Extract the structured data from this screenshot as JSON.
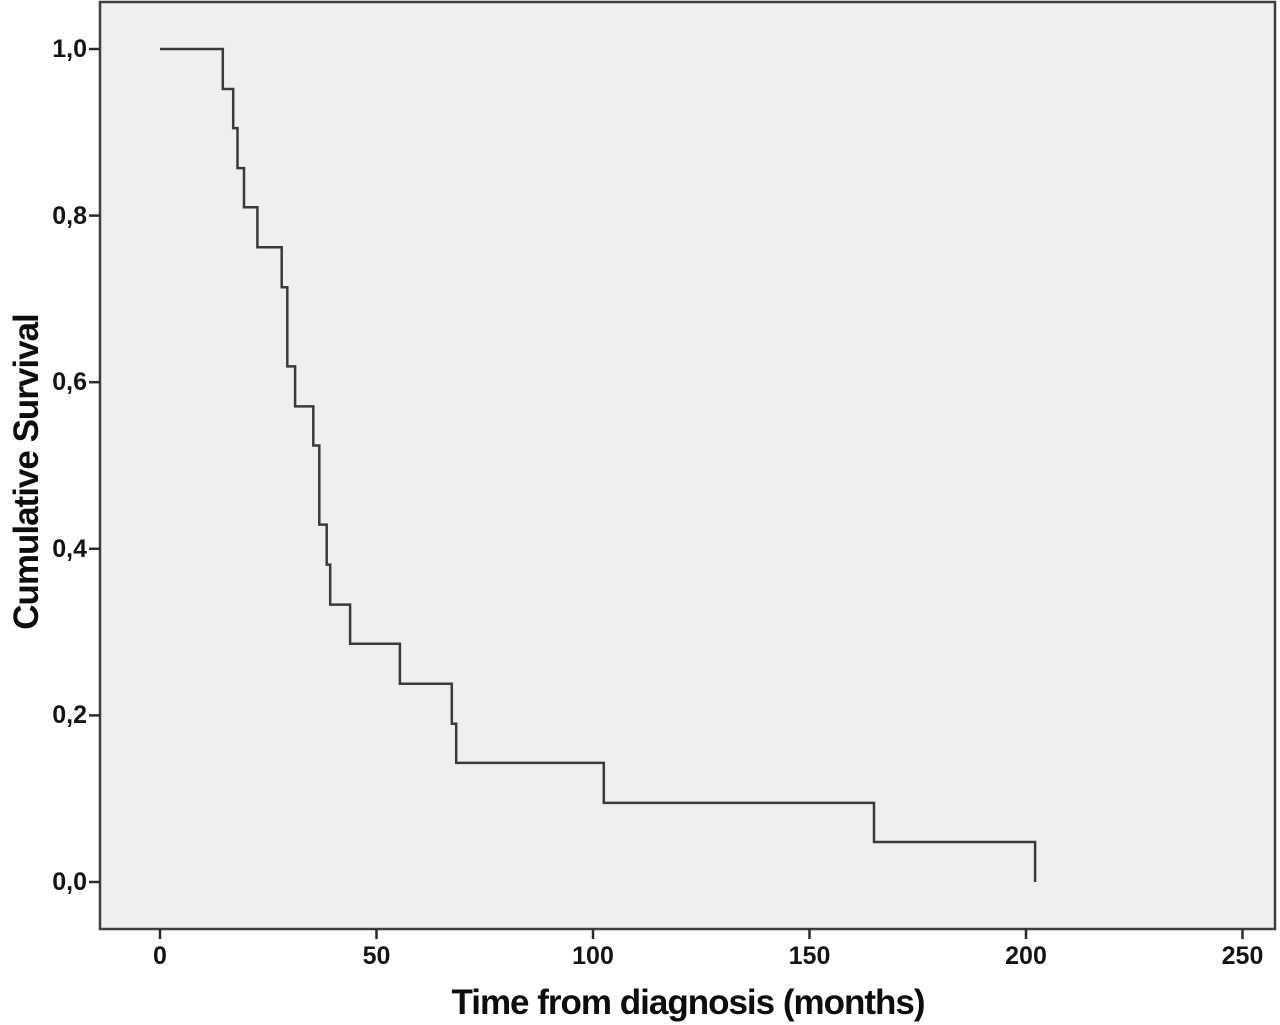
{
  "figure": {
    "background_color": "#ffffff"
  },
  "chart_data": {
    "type": "line",
    "chart_style": "kaplan-meier-step-function",
    "title": "",
    "xlabel": "Time from diagnosis (months)",
    "ylabel": "Cumulative Survival",
    "xlim": [
      -14,
      257
    ],
    "ylim": [
      -0.056,
      1.052
    ],
    "grid": false,
    "legend": false,
    "decimal_separator": "comma",
    "plot_background": "#efefef",
    "frame_color": "#3f3f3f",
    "tick_color": "#2b2b2b",
    "x_ticks": [
      {
        "value": 0,
        "label": "0"
      },
      {
        "value": 50,
        "label": "50"
      },
      {
        "value": 100,
        "label": "100"
      },
      {
        "value": 150,
        "label": "150"
      },
      {
        "value": 200,
        "label": "200"
      },
      {
        "value": 250,
        "label": "250"
      }
    ],
    "y_ticks": [
      {
        "value": 0.0,
        "label": "0,0"
      },
      {
        "value": 0.2,
        "label": "0,2"
      },
      {
        "value": 0.4,
        "label": "0,4"
      },
      {
        "value": 0.6,
        "label": "0,6"
      },
      {
        "value": 0.8,
        "label": "0,8"
      },
      {
        "value": 1.0,
        "label": "1,0"
      }
    ],
    "series": [
      {
        "name": "cumulative-survival",
        "color": "#3a3a3a",
        "line_width": 2.5,
        "start": {
          "t": 0,
          "s": 1.0
        },
        "events": [
          {
            "t": 14.5,
            "s": 0.952
          },
          {
            "t": 16.9,
            "s": 0.905
          },
          {
            "t": 17.9,
            "s": 0.857
          },
          {
            "t": 19.4,
            "s": 0.81
          },
          {
            "t": 22.5,
            "s": 0.762
          },
          {
            "t": 28.1,
            "s": 0.714
          },
          {
            "t": 29.4,
            "s": 0.619
          },
          {
            "t": 31.2,
            "s": 0.571
          },
          {
            "t": 35.4,
            "s": 0.524
          },
          {
            "t": 36.8,
            "s": 0.429
          },
          {
            "t": 38.5,
            "s": 0.381
          },
          {
            "t": 39.3,
            "s": 0.333
          },
          {
            "t": 43.9,
            "s": 0.286
          },
          {
            "t": 55.4,
            "s": 0.238
          },
          {
            "t": 67.4,
            "s": 0.19
          },
          {
            "t": 68.4,
            "s": 0.143
          },
          {
            "t": 102.5,
            "s": 0.095
          },
          {
            "t": 164.9,
            "s": 0.048
          },
          {
            "t": 202.1,
            "s": 0.0
          }
        ]
      }
    ]
  }
}
